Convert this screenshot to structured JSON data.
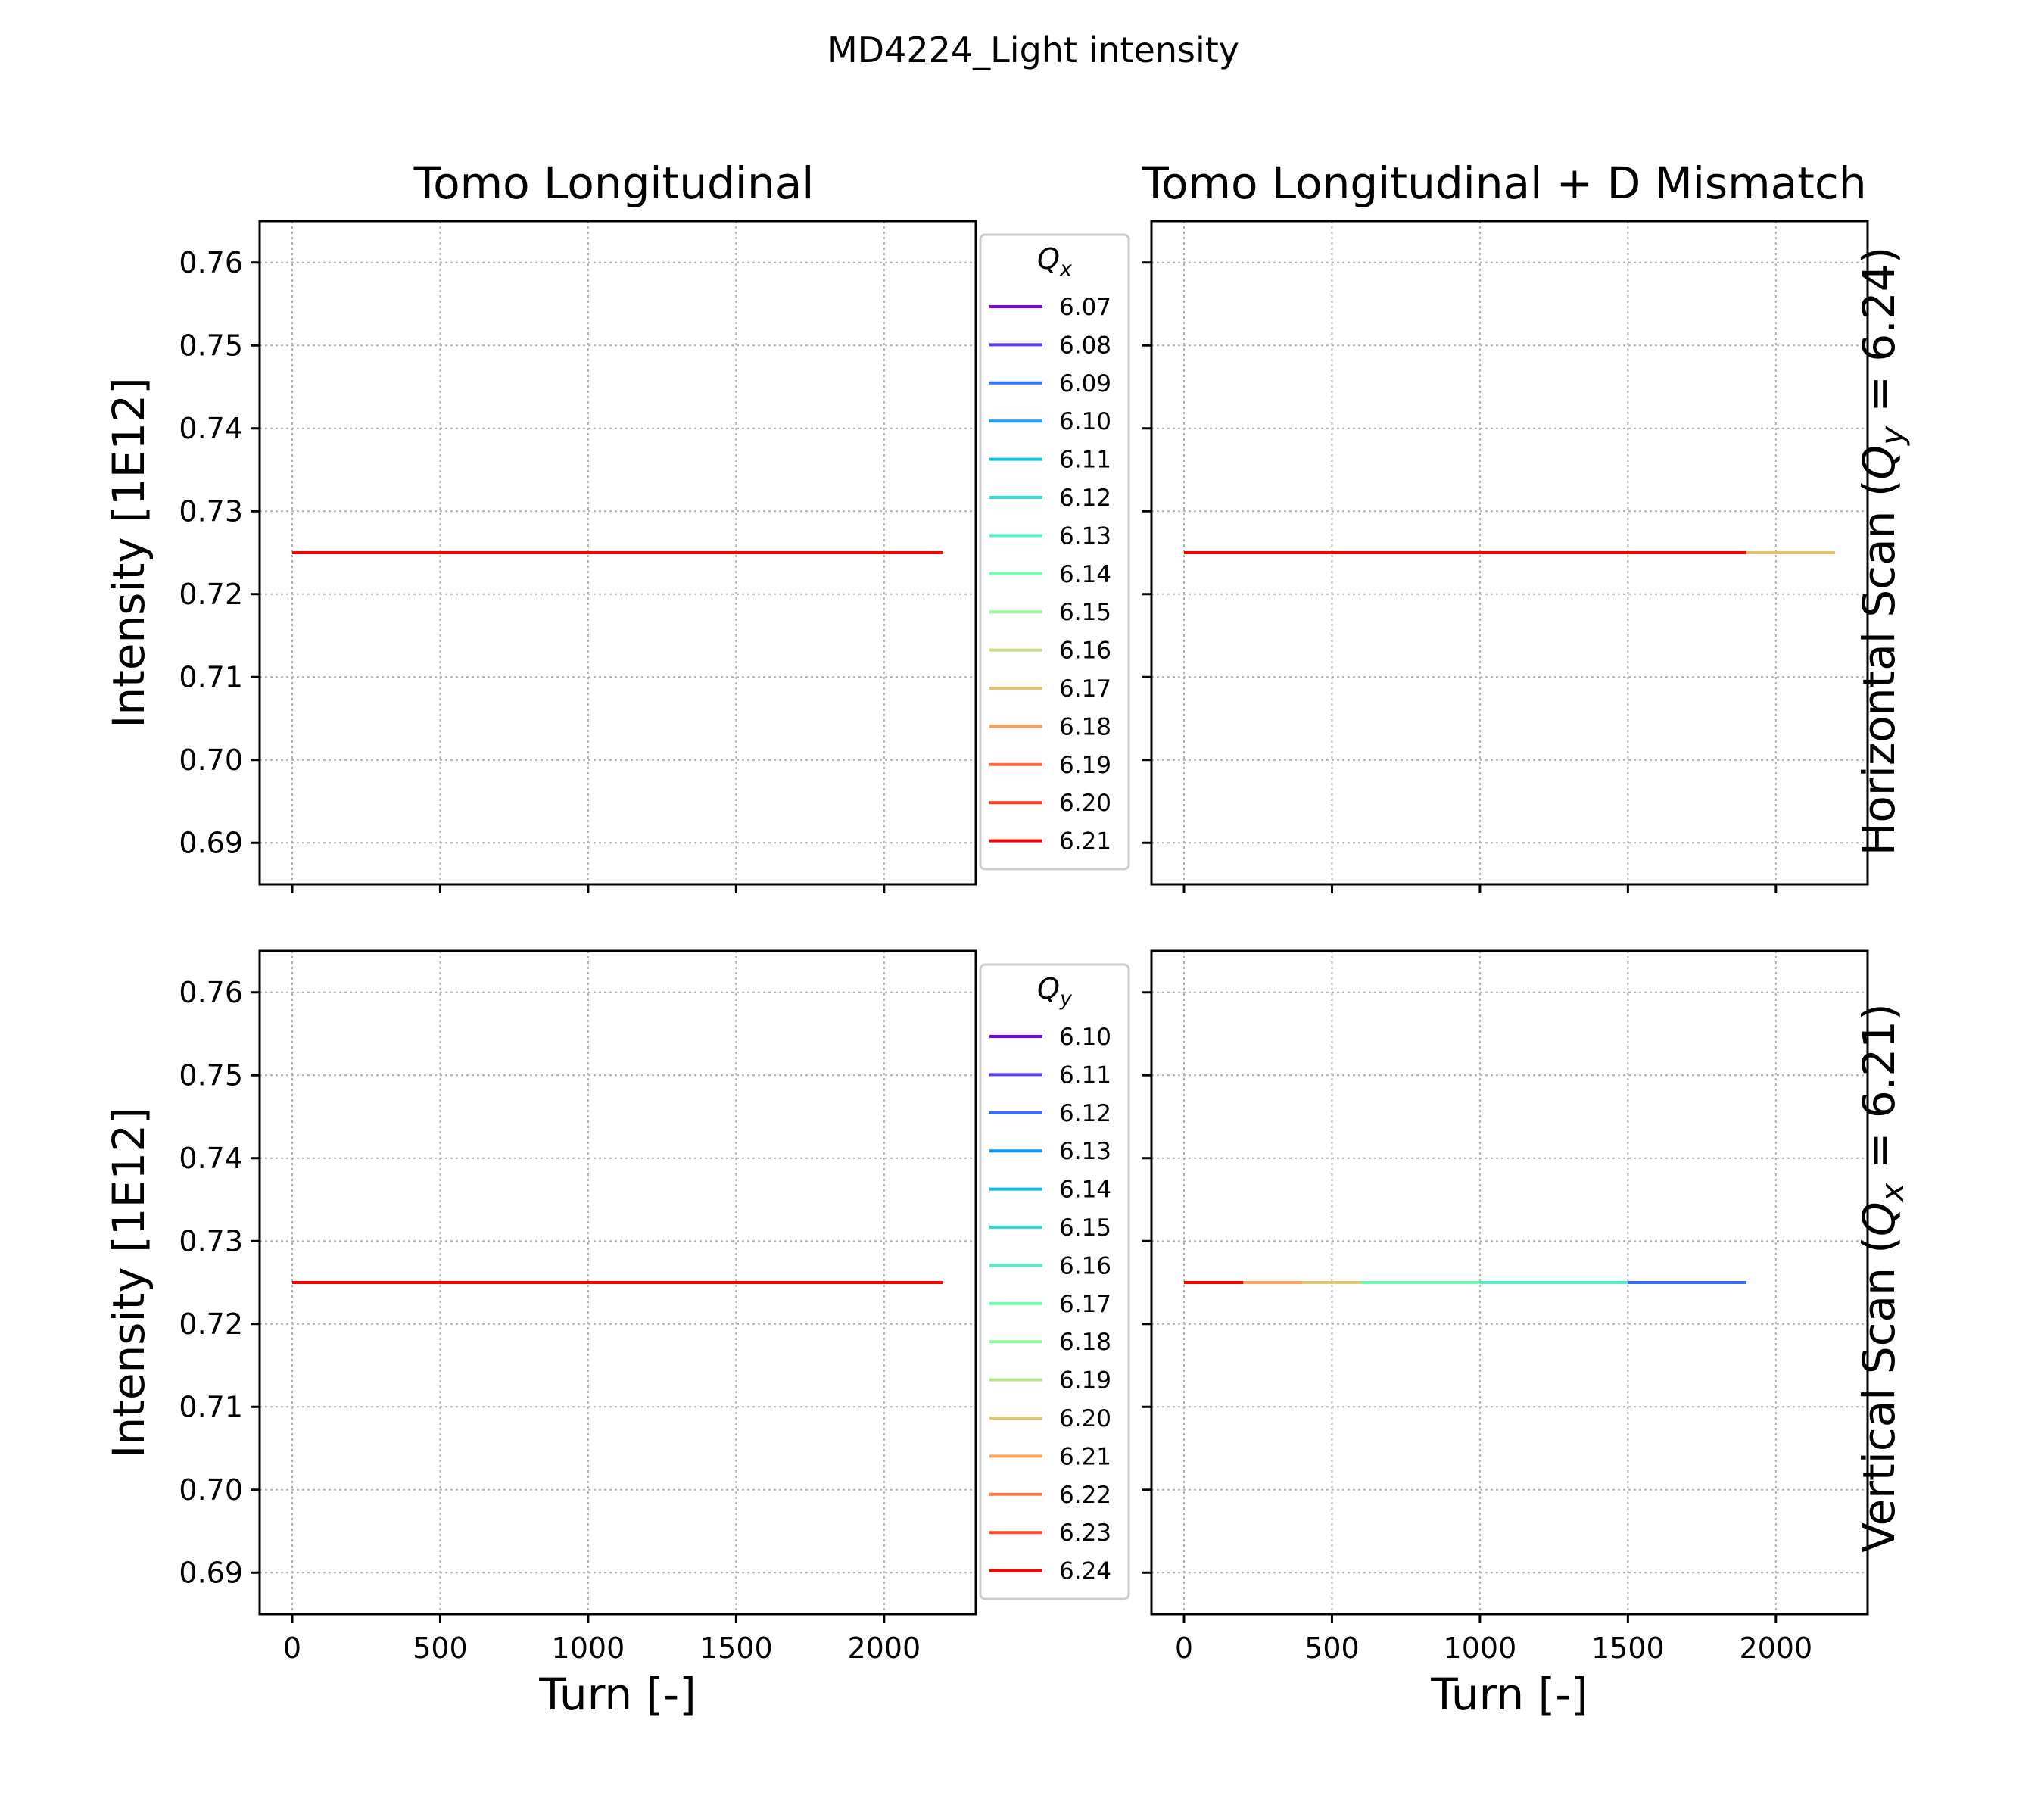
{
  "figure": {
    "suptitle": "MD4224_Light intensity",
    "column_titles": [
      "Tomo Longitudinal",
      "Tomo Longitudinal + D Mismatch"
    ],
    "row_labels": [
      {
        "prefix": "Horizontal Scan (",
        "symbol": "Q",
        "sub": "y",
        "suffix": " = 6.24)"
      },
      {
        "prefix": "Vertical Scan (",
        "symbol": "Q",
        "sub": "x",
        "suffix": " = 6.21)"
      }
    ],
    "ylabel": "Intensity [1E12]",
    "xlabel": "Turn [-]"
  },
  "chart_data": [
    {
      "type": "line",
      "panel": "row1-col1",
      "title": "Tomo Longitudinal",
      "ylabel": "Intensity [1E12]",
      "xlim": [
        -110,
        2310
      ],
      "ylim": [
        0.685,
        0.765
      ],
      "xticks": [
        0,
        500,
        1000,
        1500,
        2000
      ],
      "yticks": [
        0.69,
        0.7,
        0.71,
        0.72,
        0.73,
        0.74,
        0.75,
        0.76
      ],
      "grid": true,
      "legend": {
        "title_symbol": "Q",
        "title_sub": "x",
        "placement": "outside-right"
      },
      "series": [
        {
          "name": "6.07",
          "color": "#8000ff",
          "x": [
            0,
            2200
          ],
          "y": [
            0.725,
            0.725
          ]
        },
        {
          "name": "6.08",
          "color": "#5a3cfc",
          "x": [
            0,
            2200
          ],
          "y": [
            0.725,
            0.725
          ]
        },
        {
          "name": "6.09",
          "color": "#3473f7",
          "x": [
            0,
            2200
          ],
          "y": [
            0.725,
            0.725
          ]
        },
        {
          "name": "6.10",
          "color": "#1c9ef2",
          "x": [
            0,
            2200
          ],
          "y": [
            0.725,
            0.725
          ]
        },
        {
          "name": "6.11",
          "color": "#05c6e4",
          "x": [
            0,
            2200
          ],
          "y": [
            0.725,
            0.725
          ]
        },
        {
          "name": "6.12",
          "color": "#2ae0d8",
          "x": [
            0,
            2200
          ],
          "y": [
            0.725,
            0.725
          ]
        },
        {
          "name": "6.13",
          "color": "#50f4c6",
          "x": [
            0,
            2200
          ],
          "y": [
            0.725,
            0.725
          ]
        },
        {
          "name": "6.14",
          "color": "#76fbb2",
          "x": [
            0,
            2200
          ],
          "y": [
            0.725,
            0.725
          ]
        },
        {
          "name": "6.15",
          "color": "#9cf49b",
          "x": [
            0,
            2200
          ],
          "y": [
            0.725,
            0.725
          ]
        },
        {
          "name": "6.16",
          "color": "#c2de84",
          "x": [
            0,
            2200
          ],
          "y": [
            0.725,
            0.725
          ]
        },
        {
          "name": "6.17",
          "color": "#eac06c",
          "x": [
            0,
            2200
          ],
          "y": [
            0.725,
            0.725
          ]
        },
        {
          "name": "6.18",
          "color": "#ff9c56",
          "x": [
            0,
            2200
          ],
          "y": [
            0.725,
            0.725
          ]
        },
        {
          "name": "6.19",
          "color": "#ff6c3f",
          "x": [
            0,
            2200
          ],
          "y": [
            0.725,
            0.725
          ]
        },
        {
          "name": "6.20",
          "color": "#ff3a22",
          "x": [
            0,
            2200
          ],
          "y": [
            0.725,
            0.725
          ]
        },
        {
          "name": "6.21",
          "color": "#ff0000",
          "x": [
            0,
            2200
          ],
          "y": [
            0.725,
            0.725
          ]
        }
      ]
    },
    {
      "type": "line",
      "panel": "row1-col2",
      "title": "Tomo Longitudinal + D Mismatch",
      "xlim": [
        -110,
        2310
      ],
      "ylim": [
        0.685,
        0.765
      ],
      "xticks": [
        0,
        500,
        1000,
        1500,
        2000
      ],
      "yticks": [
        0.69,
        0.7,
        0.71,
        0.72,
        0.73,
        0.74,
        0.75,
        0.76
      ],
      "grid": true,
      "series": [
        {
          "color": "#eac06c",
          "x": [
            0,
            2200
          ],
          "y": [
            0.725,
            0.725
          ]
        },
        {
          "color": "#ff0000",
          "x": [
            0,
            1900
          ],
          "y": [
            0.725,
            0.725
          ]
        }
      ]
    },
    {
      "type": "line",
      "panel": "row2-col1",
      "ylabel": "Intensity [1E12]",
      "xlabel": "Turn [-]",
      "xlim": [
        -110,
        2310
      ],
      "ylim": [
        0.685,
        0.765
      ],
      "xticks": [
        0,
        500,
        1000,
        1500,
        2000
      ],
      "yticks": [
        0.69,
        0.7,
        0.71,
        0.72,
        0.73,
        0.74,
        0.75,
        0.76
      ],
      "grid": true,
      "legend": {
        "title_symbol": "Q",
        "title_sub": "y",
        "placement": "outside-right"
      },
      "series": [
        {
          "name": "6.10",
          "color": "#8000ff",
          "x": [
            0,
            2200
          ],
          "y": [
            0.725,
            0.725
          ]
        },
        {
          "name": "6.11",
          "color": "#5c39fc",
          "x": [
            0,
            2200
          ],
          "y": [
            0.725,
            0.725
          ]
        },
        {
          "name": "6.12",
          "color": "#3a6ef8",
          "x": [
            0,
            2200
          ],
          "y": [
            0.725,
            0.725
          ]
        },
        {
          "name": "6.13",
          "color": "#1896f2",
          "x": [
            0,
            2200
          ],
          "y": [
            0.725,
            0.725
          ]
        },
        {
          "name": "6.14",
          "color": "#0bbce6",
          "x": [
            0,
            2200
          ],
          "y": [
            0.725,
            0.725
          ]
        },
        {
          "name": "6.15",
          "color": "#2edbd8",
          "x": [
            0,
            2200
          ],
          "y": [
            0.725,
            0.725
          ]
        },
        {
          "name": "6.16",
          "color": "#50f0c8",
          "x": [
            0,
            2200
          ],
          "y": [
            0.725,
            0.725
          ]
        },
        {
          "name": "6.17",
          "color": "#72fab4",
          "x": [
            0,
            2200
          ],
          "y": [
            0.725,
            0.725
          ]
        },
        {
          "name": "6.18",
          "color": "#94f8a0",
          "x": [
            0,
            2200
          ],
          "y": [
            0.725,
            0.725
          ]
        },
        {
          "name": "6.19",
          "color": "#b6e88a",
          "x": [
            0,
            2200
          ],
          "y": [
            0.725,
            0.725
          ]
        },
        {
          "name": "6.20",
          "color": "#dccb74",
          "x": [
            0,
            2200
          ],
          "y": [
            0.725,
            0.725
          ]
        },
        {
          "name": "6.21",
          "color": "#ffa65e",
          "x": [
            0,
            2200
          ],
          "y": [
            0.725,
            0.725
          ]
        },
        {
          "name": "6.22",
          "color": "#ff7b47",
          "x": [
            0,
            2200
          ],
          "y": [
            0.725,
            0.725
          ]
        },
        {
          "name": "6.23",
          "color": "#ff4a2e",
          "x": [
            0,
            2200
          ],
          "y": [
            0.725,
            0.725
          ]
        },
        {
          "name": "6.24",
          "color": "#ff0000",
          "x": [
            0,
            2200
          ],
          "y": [
            0.725,
            0.725
          ]
        }
      ]
    },
    {
      "type": "line",
      "panel": "row2-col2",
      "xlabel": "Turn [-]",
      "xlim": [
        -110,
        2310
      ],
      "ylim": [
        0.685,
        0.765
      ],
      "xticks": [
        0,
        500,
        1000,
        1500,
        2000
      ],
      "yticks": [
        0.69,
        0.7,
        0.71,
        0.72,
        0.73,
        0.74,
        0.75,
        0.76
      ],
      "grid": true,
      "series": [
        {
          "color": "#3a6ef8",
          "x": [
            0,
            1900
          ],
          "y": [
            0.725,
            0.725
          ]
        },
        {
          "color": "#50f0c8",
          "x": [
            0,
            1500
          ],
          "y": [
            0.725,
            0.725
          ]
        },
        {
          "color": "#72fab4",
          "x": [
            0,
            1000
          ],
          "y": [
            0.725,
            0.725
          ]
        },
        {
          "color": "#dccb74",
          "x": [
            0,
            600
          ],
          "y": [
            0.725,
            0.725
          ]
        },
        {
          "color": "#ffa65e",
          "x": [
            0,
            400
          ],
          "y": [
            0.725,
            0.725
          ]
        },
        {
          "color": "#ff0000",
          "x": [
            0,
            200
          ],
          "y": [
            0.725,
            0.725
          ]
        }
      ]
    }
  ]
}
